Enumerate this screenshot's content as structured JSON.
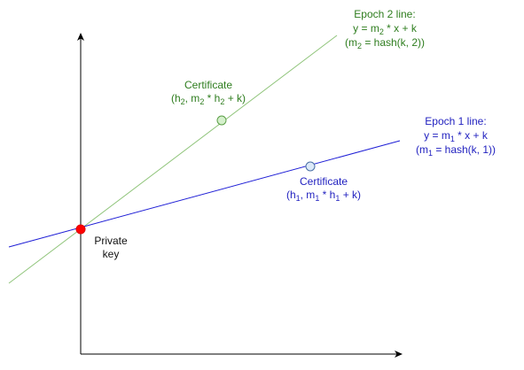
{
  "colors": {
    "epoch2": "#8fc47a",
    "epoch2_text": "#2e7d1e",
    "epoch1": "#1f1fd6",
    "epoch1_text": "#1f1fbf",
    "axis": "#000000",
    "private_key": "#ff0000",
    "cert2_fill": "#d5f0cc",
    "cert1_fill": "#dce9f8"
  },
  "epoch2": {
    "title": "Epoch 2 line:",
    "equation": {
      "y": "y = m",
      "sub": "2",
      "rest": " * x + k"
    },
    "hash": {
      "open": "(m",
      "sub": "2",
      "rest": " = hash(k, 2))"
    }
  },
  "epoch1": {
    "title": "Epoch 1 line:",
    "equation": {
      "y": "y = m",
      "sub": "1",
      "rest": " * x + k"
    },
    "hash": {
      "open": "(m",
      "sub": "1",
      "rest": " = hash(k, 1))"
    }
  },
  "cert2": {
    "title": "Certificate",
    "coord": {
      "a": "(h",
      "a_sub": "2",
      "b": ", m",
      "b_sub": "2",
      "c": " * h",
      "c_sub": "2",
      "d": " + k)"
    }
  },
  "cert1": {
    "title": "Certificate",
    "coord": {
      "a": "(h",
      "a_sub": "1",
      "b": ", m",
      "b_sub": "1",
      "c": " * h",
      "c_sub": "1",
      "d": " + k)"
    }
  },
  "private_key": {
    "line1": "Private",
    "line2": "key"
  }
}
